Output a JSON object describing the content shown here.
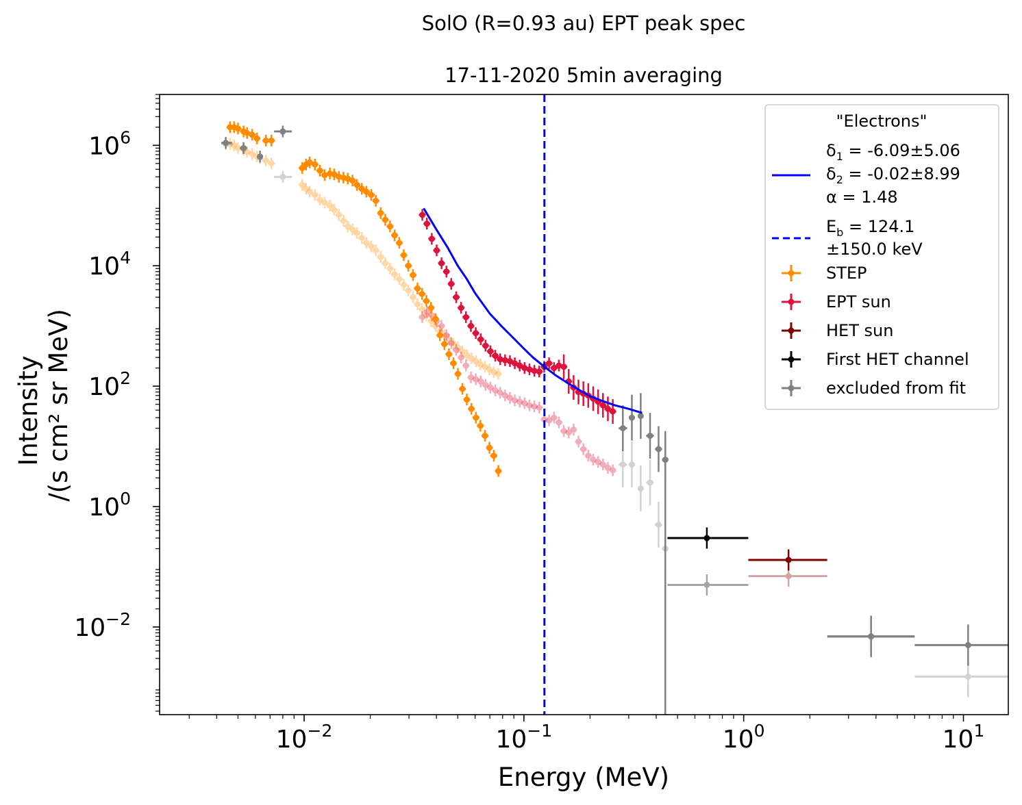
{
  "chart_data": {
    "type": "scatter",
    "title": "SolO  (R=0.93 au) EPT  peak spec",
    "subtitle": "17-11-2020  5min  averaging",
    "xlabel": "Energy (MeV)",
    "ylabel_line1": "Intensity",
    "ylabel_line2": "/(s cm² sr MeV)",
    "x_scale": "log",
    "y_scale": "log",
    "xlim": [
      0.0022,
      16
    ],
    "ylim": [
      0.00035,
      7000000
    ],
    "x_ticks": [
      {
        "value": 0.01,
        "base": "10",
        "exp": "−2"
      },
      {
        "value": 0.1,
        "base": "10",
        "exp": "−1"
      },
      {
        "value": 1,
        "base": "10",
        "exp": "0"
      },
      {
        "value": 10,
        "base": "10",
        "exp": "1"
      }
    ],
    "y_ticks": [
      {
        "value": 0.01,
        "base": "10",
        "exp": "−2"
      },
      {
        "value": 1,
        "base": "10",
        "exp": "0"
      },
      {
        "value": 100,
        "base": "10",
        "exp": "2"
      },
      {
        "value": 10000,
        "base": "10",
        "exp": "4"
      },
      {
        "value": 1000000,
        "base": "10",
        "exp": "6"
      }
    ],
    "grid": false,
    "legend_position": "top-right",
    "legend": {
      "header": "\"Electrons\"",
      "fit": {
        "color": "#0000ff",
        "delta1": {
          "symbol": "δ",
          "sub": "1",
          "text": " = -6.09±5.06"
        },
        "delta2": {
          "symbol": "δ",
          "sub": "2",
          "text": " = -0.02±8.99"
        },
        "alpha": "α =  1.48"
      },
      "break": {
        "color": "#0000ff",
        "line1_symbol": "E",
        "line1_sub": "b",
        "line1_text": " =  124.1",
        "line2": "±150.0 keV"
      },
      "entries": [
        {
          "label": "STEP",
          "color": "#ff8c00"
        },
        {
          "label": "EPT sun",
          "color": "#dc143c"
        },
        {
          "label": "HET sun",
          "color": "#800000"
        },
        {
          "label": "First HET channel",
          "color": "#000000"
        },
        {
          "label": "excluded from fit",
          "color": "#808080"
        }
      ]
    },
    "fit_line": {
      "color": "#0000ff",
      "x": [
        0.035,
        0.04,
        0.045,
        0.05,
        0.055,
        0.06,
        0.07,
        0.08,
        0.09,
        0.1,
        0.11,
        0.124,
        0.14,
        0.16,
        0.18,
        0.2,
        0.23,
        0.26,
        0.3,
        0.345
      ],
      "y": [
        90000,
        40000,
        20000,
        10000,
        6000,
        3500,
        1600,
        950,
        620,
        420,
        300,
        210,
        150,
        110,
        85,
        68,
        56,
        48,
        42,
        36
      ]
    },
    "break_line": {
      "x": 0.124,
      "color": "#0000ff"
    },
    "series": [
      {
        "name": "STEP",
        "color": "#ff8c00",
        "x": [
          0.0046,
          0.0048,
          0.005,
          0.0053,
          0.0055,
          0.0058,
          0.0061,
          0.0067,
          0.0071,
          0.0098,
          0.0102,
          0.0106,
          0.0112,
          0.0118,
          0.0124,
          0.0131,
          0.0137,
          0.0144,
          0.0151,
          0.0158,
          0.0166,
          0.0174,
          0.0183,
          0.0192,
          0.0202,
          0.0212,
          0.0223,
          0.0234,
          0.0246,
          0.0258,
          0.0271,
          0.0284,
          0.0298,
          0.0313,
          0.0328,
          0.0344,
          0.036,
          0.0378,
          0.0396,
          0.0415,
          0.0435,
          0.0456,
          0.0478,
          0.0501,
          0.0525,
          0.055,
          0.0577,
          0.0605,
          0.0634,
          0.0665,
          0.0697,
          0.073,
          0.0765
        ],
        "y": [
          2000000,
          2000000,
          1900000,
          1700000,
          1600000,
          1500000,
          1300000,
          1200000,
          1200000,
          420000,
          480000,
          520000,
          480000,
          380000,
          320000,
          340000,
          330000,
          300000,
          290000,
          280000,
          260000,
          220000,
          190000,
          170000,
          150000,
          120000,
          75000,
          58000,
          45000,
          32000,
          24000,
          15000,
          10000,
          7000,
          4200,
          3400,
          2600,
          2000,
          1300,
          700,
          500,
          340,
          240,
          160,
          90,
          60,
          42,
          30,
          22,
          15,
          9.5,
          7,
          3.9
        ],
        "y_ghost": [
          1050000,
          1000000,
          900000,
          850000,
          780000,
          720000,
          650000,
          560000,
          500000,
          220000,
          190000,
          170000,
          150000,
          125000,
          112000,
          100000,
          85000,
          70000,
          56000,
          45000,
          40000,
          35000,
          29000,
          24000,
          21000,
          18000,
          14000,
          11000,
          9000,
          7200,
          6000,
          4800,
          3900,
          3000,
          2300,
          1900,
          1500,
          1200,
          1000,
          820,
          700,
          600,
          510,
          440,
          380,
          330,
          290,
          260,
          230,
          210,
          190,
          170,
          160
        ]
      },
      {
        "name": "EPT sun",
        "color": "#dc143c",
        "x": [
          0.0345,
          0.0362,
          0.0381,
          0.0401,
          0.0422,
          0.0444,
          0.0467,
          0.0492,
          0.0518,
          0.0545,
          0.0574,
          0.0604,
          0.0636,
          0.0669,
          0.0704,
          0.0741,
          0.078,
          0.0821,
          0.0864,
          0.0909,
          0.0957,
          0.1007,
          0.106,
          0.1116,
          0.1175,
          0.1237,
          0.1302,
          0.1371,
          0.1443,
          0.1519,
          0.1599,
          0.1683,
          0.1772,
          0.1865,
          0.1963,
          0.2067,
          0.2176,
          0.229,
          0.2411,
          0.2538
        ],
        "y": [
          70000,
          50000,
          28000,
          18000,
          11000,
          8000,
          5000,
          3000,
          2000,
          1400,
          1000,
          760,
          600,
          470,
          380,
          320,
          280,
          270,
          260,
          240,
          220,
          200,
          190,
          180,
          175,
          210,
          240,
          200,
          220,
          210,
          120,
          95,
          80,
          75,
          70,
          62,
          55,
          48,
          42,
          38
        ],
        "y_ghost": [
          1400,
          1700,
          1500,
          1200,
          1000,
          700,
          520,
          400,
          300,
          220,
          140,
          130,
          120,
          105,
          95,
          85,
          78,
          70,
          64,
          58,
          55,
          52,
          48,
          46,
          44,
          28,
          27,
          30,
          25,
          18,
          17,
          19,
          12,
          9,
          7,
          6,
          5.5,
          5,
          4.4,
          4
        ]
      },
      {
        "name": "HET sun",
        "color": "#800000",
        "x": [
          1.6
        ],
        "xerr_low": [
          1.05
        ],
        "xerr_high": [
          2.4
        ],
        "y": [
          0.13
        ],
        "y_ghost": [
          0.07
        ]
      },
      {
        "name": "First HET channel",
        "color": "#000000",
        "x": [
          0.68
        ],
        "xerr_low": [
          0.45
        ],
        "xerr_high": [
          1.05
        ],
        "y": [
          0.3
        ],
        "y_ghost": [
          0.05
        ]
      },
      {
        "name": "excluded from fit",
        "color": "#808080",
        "x": [
          0.0044,
          0.0053,
          0.0063,
          0.008,
          0.282,
          0.31,
          0.34,
          0.375,
          0.41,
          0.44,
          3.8,
          10.5
        ],
        "xerr_low": [
          0.0042,
          0.0051,
          0.0061,
          0.0073,
          0.27,
          0.3,
          0.33,
          0.36,
          0.395,
          0.425,
          2.4,
          6.0
        ],
        "xerr_high": [
          0.0047,
          0.0055,
          0.0065,
          0.0088,
          0.295,
          0.32,
          0.35,
          0.39,
          0.425,
          0.455,
          6.0,
          16
        ],
        "y": [
          1100000,
          900000,
          650000,
          1700000,
          20,
          30,
          32,
          15,
          9,
          6,
          0.007,
          0.005
        ],
        "y_ghost": [
          1050000,
          900000,
          620000,
          300000,
          5,
          5,
          2,
          2.5,
          0.5,
          0.2,
          0.0068,
          0.0015
        ]
      }
    ]
  }
}
